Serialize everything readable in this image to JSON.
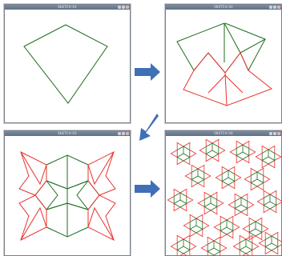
{
  "windows": [
    {
      "title": "SKETCH 01",
      "green": "#1f6d1f",
      "red": "#e8322e"
    },
    {
      "title": "SKETCH 02",
      "green": "#1f6d1f",
      "red": "#e8322e"
    },
    {
      "title": "SKETCH 03",
      "green": "#1f6d1f",
      "red": "#e8322e"
    },
    {
      "title": "SKETCH 04",
      "green": "#1f6d1f",
      "red": "#e8322e"
    }
  ],
  "arrow_color": "#3f6fb6"
}
